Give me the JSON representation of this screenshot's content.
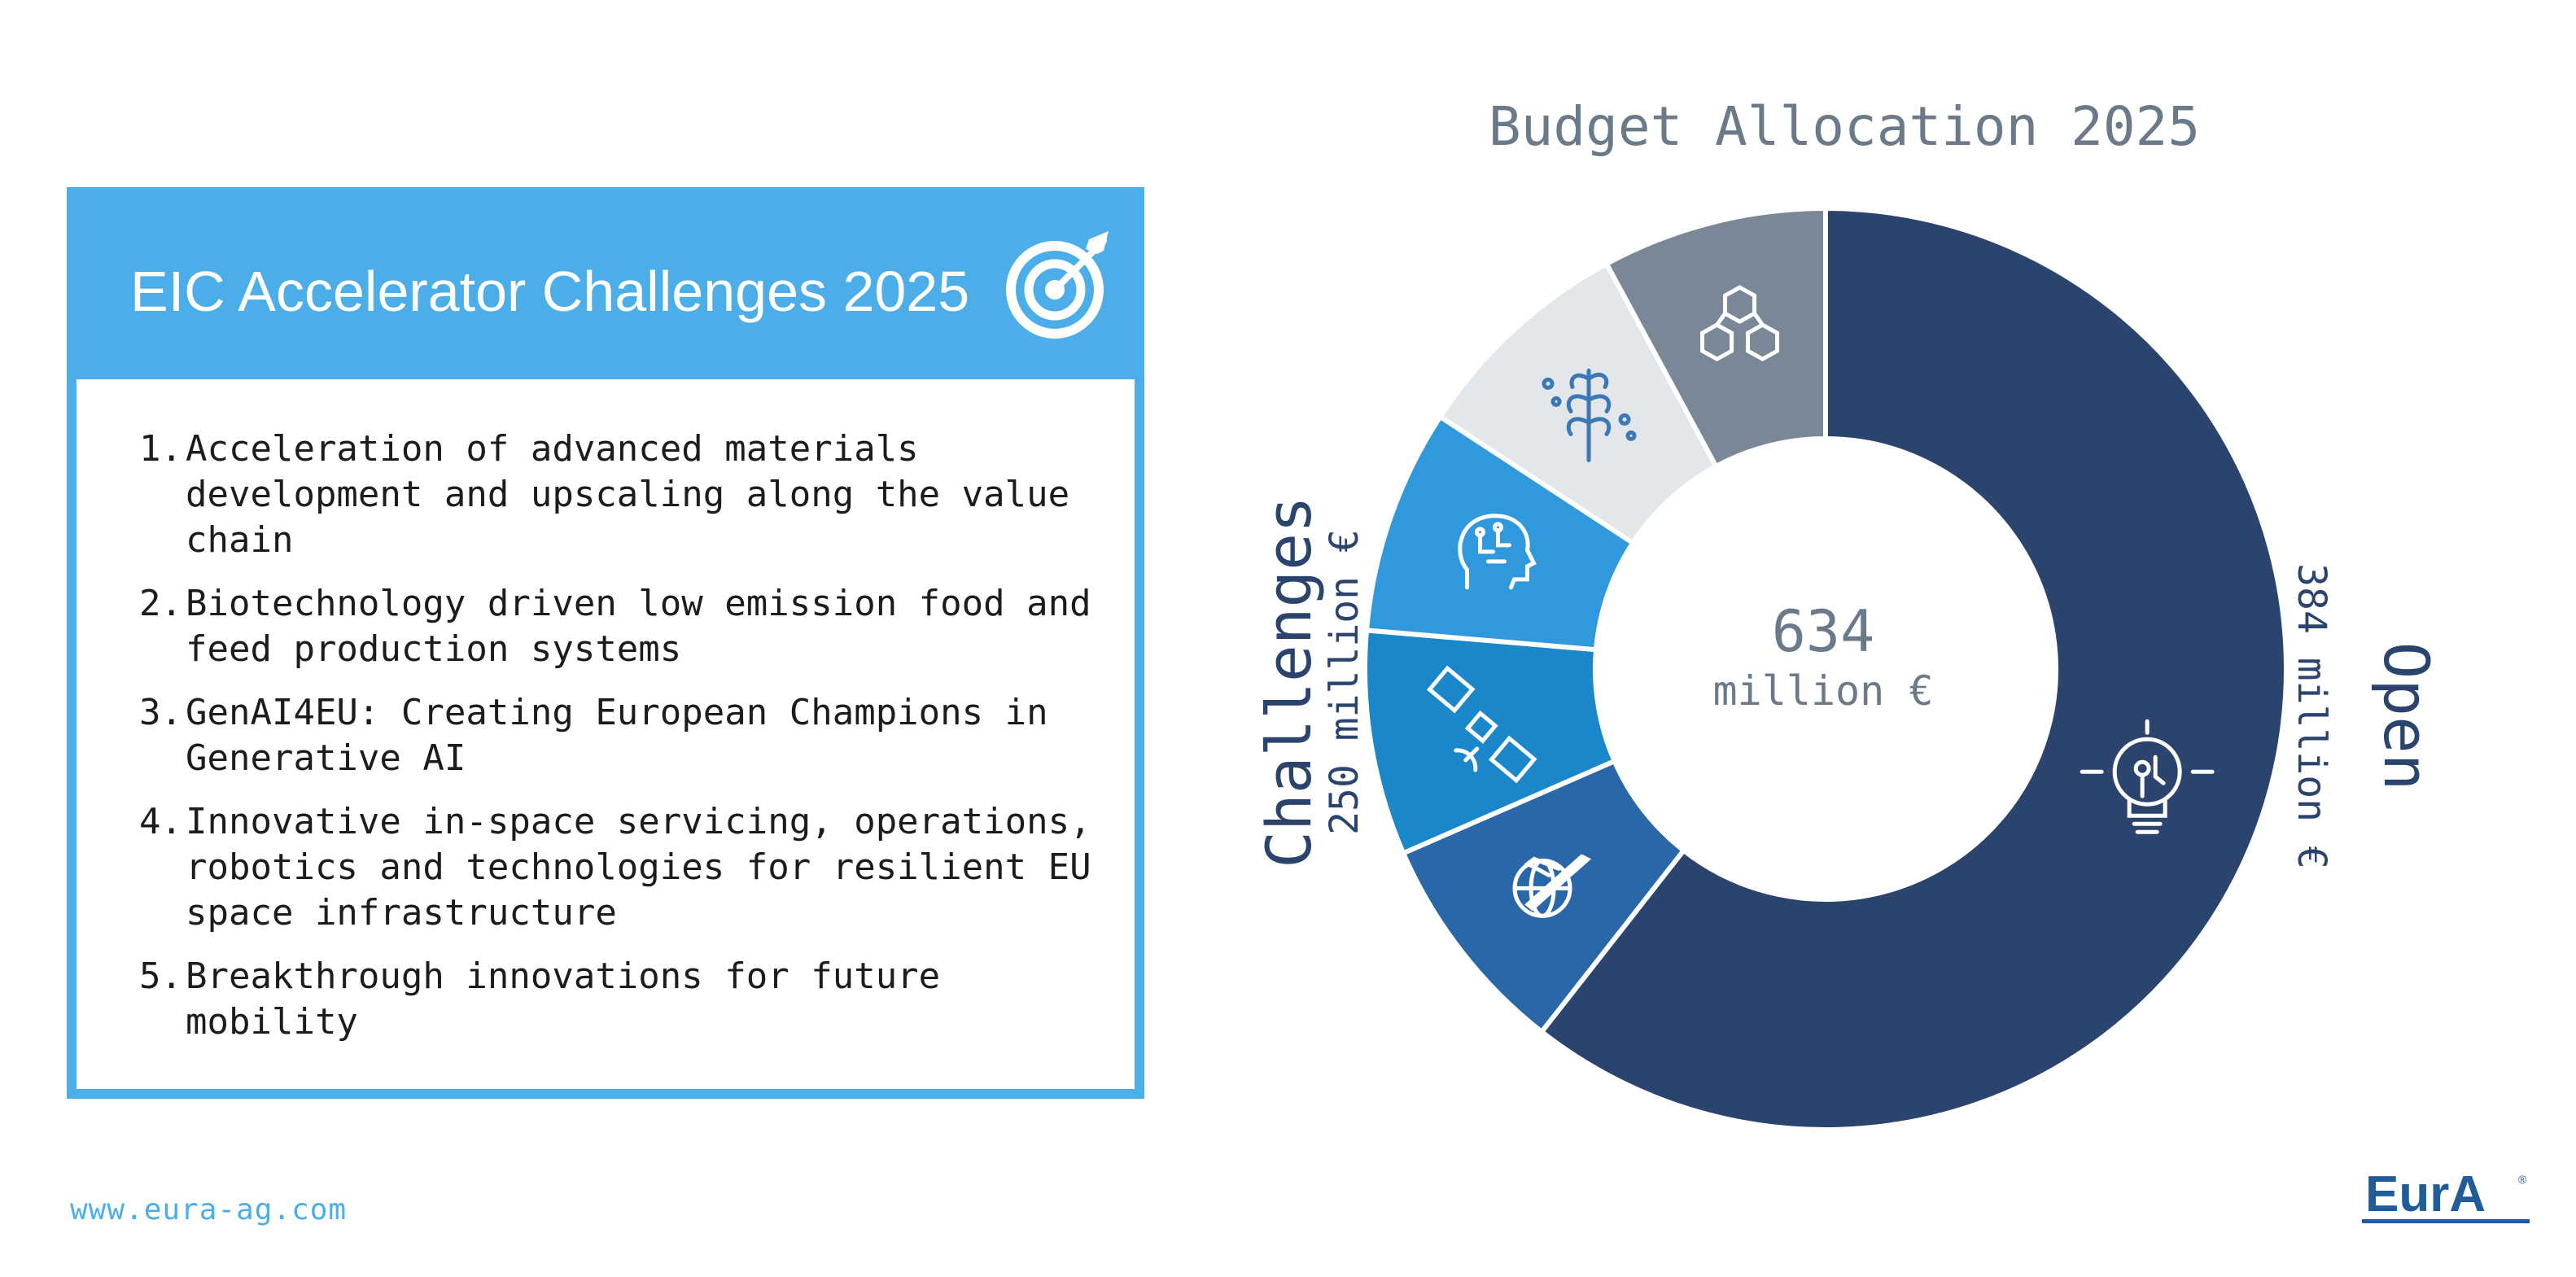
{
  "panel": {
    "title": "EIC Accelerator Challenges 2025",
    "items": [
      {
        "num": "1.",
        "text": "Acceleration of advanced materials development and upscaling along the value chain"
      },
      {
        "num": "2.",
        "text": "Biotechnology driven low emission food and feed production systems"
      },
      {
        "num": "3.",
        "text": "GenAI4EU: Creating European Champions in Generative AI"
      },
      {
        "num": "4.",
        "text": "Innovative in-space servicing, operations, robotics and technologies for resilient EU space infrastructure"
      },
      {
        "num": "5.",
        "text": "Breakthrough innovations for future mobility"
      }
    ]
  },
  "footer": {
    "website": "www.eura-ag.com",
    "logo_text": "EurA"
  },
  "colors": {
    "accent": "#4caee8",
    "open": "#2b446e",
    "materials": "#7a8796",
    "biotech": "#e3e6ea",
    "genai": "#3098dc",
    "space": "#1a87cb",
    "mobility": "#2a67a9",
    "text_gray": "#6b7a88"
  },
  "chart_data": {
    "type": "pie",
    "title": "Budget Allocation 2025",
    "center_value": "634",
    "center_unit": "million €",
    "total": 634,
    "groups": [
      {
        "name": "Open",
        "amount": "384 million €",
        "value": 384
      },
      {
        "name": "Challenges",
        "amount": "250 million €",
        "value": 250
      }
    ],
    "slices": [
      {
        "group": "Open",
        "value": 384,
        "icon": "lightbulb-ai-icon",
        "color": "#2b446e"
      },
      {
        "group": "Challenges",
        "value": 50,
        "icon": "aircraft-globe-icon",
        "color": "#2a67a9"
      },
      {
        "group": "Challenges",
        "value": 50,
        "icon": "satellite-icon",
        "color": "#1a87cb"
      },
      {
        "group": "Challenges",
        "value": 50,
        "icon": "ai-head-icon",
        "color": "#3098dc"
      },
      {
        "group": "Challenges",
        "value": 50,
        "icon": "plant-cells-icon",
        "color": "#e3e6ea"
      },
      {
        "group": "Challenges",
        "value": 50,
        "icon": "material-cubes-icon",
        "color": "#7a8796"
      }
    ]
  }
}
